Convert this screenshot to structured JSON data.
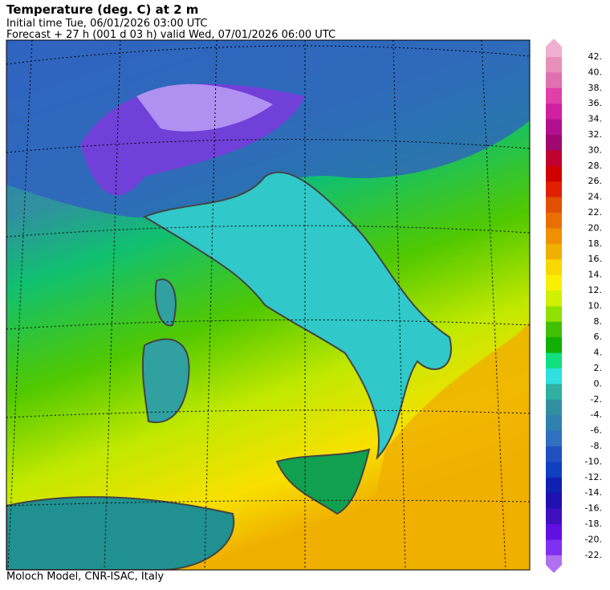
{
  "header": {
    "title": "Temperature (deg. C) at 2 m",
    "lines": [
      "Initial time  Tue, 06/01/2026  03:00 UTC",
      "Forecast  +  27 h  (001 d 03 h)  valid Wed, 07/01/2026 06:00 UTC"
    ]
  },
  "colorbar": {
    "labels": [
      "42.",
      "40.",
      "38.",
      "36.",
      "34.",
      "32.",
      "30.",
      "28.",
      "26.",
      "24.",
      "22.",
      "20.",
      "18.",
      "16.",
      "14.",
      "12.",
      "10.",
      "8.",
      "6.",
      "4.",
      "2.",
      "0.",
      "-2.",
      "-4.",
      "-6.",
      "-8.",
      "-10.",
      "-12.",
      "-14.",
      "-16.",
      "-18.",
      "-20.",
      "-22."
    ],
    "colors": [
      "#e890b8",
      "#e070b0",
      "#e040a8",
      "#d020a0",
      "#b01090",
      "#a00870",
      "#c00030",
      "#d00000",
      "#e02000",
      "#e05000",
      "#e87000",
      "#f09000",
      "#f0b000",
      "#f8d800",
      "#f8f000",
      "#d0f000",
      "#90e000",
      "#40c000",
      "#10b000",
      "#10e080",
      "#30e0e0",
      "#30b0a0",
      "#3090a0",
      "#3080b0",
      "#3070c0",
      "#2050c0",
      "#1040c0",
      "#1020b0",
      "#2010b0",
      "#4010c0",
      "#6010e0",
      "#8030f0"
    ],
    "top_color": "#f0b0d0",
    "bottom_color": "#b070f0"
  },
  "footer": "Moloch Model, CNR-ISAC, Italy"
}
